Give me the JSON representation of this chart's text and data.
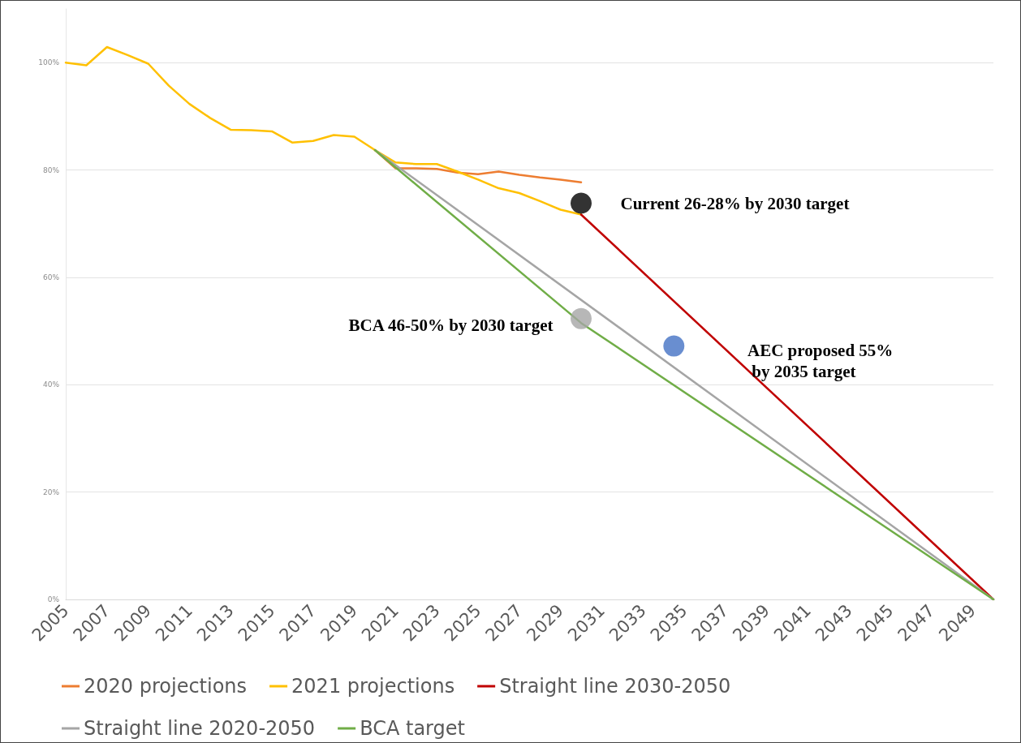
{
  "chart_data": {
    "type": "line",
    "xlim": [
      2005,
      2050
    ],
    "xticks": [
      2005,
      2007,
      2009,
      2011,
      2013,
      2015,
      2017,
      2019,
      2021,
      2023,
      2025,
      2027,
      2029,
      2031,
      2033,
      2035,
      2037,
      2039,
      2041,
      2043,
      2045,
      2047,
      2049
    ],
    "ylim": [
      0,
      110
    ],
    "yticks": [
      {
        "value": 0,
        "label": "0%"
      },
      {
        "value": 20,
        "label": "20%"
      },
      {
        "value": 40,
        "label": "40%"
      },
      {
        "value": 60,
        "label": "60%"
      },
      {
        "value": 80,
        "label": "80%"
      },
      {
        "value": 100,
        "label": "100%"
      }
    ],
    "grid": "y",
    "legend": "bottom",
    "marker": "none",
    "series": [
      {
        "name": "2020 projections",
        "color": "#ed7d31",
        "x": [
          2020,
          2021,
          2022,
          2023,
          2024,
          2025,
          2026,
          2027,
          2028,
          2029,
          2030
        ],
        "values": [
          83.7,
          80.3,
          80.3,
          80.2,
          79.5,
          79.2,
          79.7,
          79.1,
          78.6,
          78.2,
          77.7
        ]
      },
      {
        "name": "2021 projections",
        "color": "#ffc000",
        "x": [
          2005,
          2006,
          2007,
          2008,
          2009,
          2010,
          2011,
          2012,
          2013,
          2014,
          2015,
          2016,
          2017,
          2018,
          2019,
          2020,
          2021,
          2022,
          2023,
          2024,
          2025,
          2026,
          2027,
          2028,
          2029,
          2030
        ],
        "values": [
          100,
          99.5,
          102.9,
          101.4,
          99.8,
          95.7,
          92.3,
          89.7,
          87.5,
          87.4,
          87.2,
          85.1,
          85.4,
          86.5,
          86.2,
          83.7,
          81.4,
          81.1,
          81.1,
          79.7,
          78.2,
          76.6,
          75.7,
          74.2,
          72.6,
          71.7
        ]
      },
      {
        "name": "Straight line 2030-2050",
        "color": "#c00000",
        "x": [
          2030,
          2050
        ],
        "values": [
          71.7,
          0
        ]
      },
      {
        "name": "Straight line 2020-2050",
        "color": "#a5a5a5",
        "x": [
          2020,
          2050
        ],
        "values": [
          83.7,
          0
        ]
      },
      {
        "name": "BCA target",
        "color": "#70ad47",
        "x": [
          2020,
          2030,
          2050
        ],
        "values": [
          83.7,
          51.5,
          0
        ]
      },
      {
        "type": "scatter",
        "marker": "circle",
        "color": "#000000",
        "x": [
          2030
        ],
        "values": [
          73.8
        ]
      },
      {
        "type": "scatter",
        "marker": "circle",
        "color": "#a5a5a5",
        "x": [
          2030
        ],
        "values": [
          52.3
        ]
      },
      {
        "type": "scatter",
        "marker": "circle",
        "color": "#4472c4",
        "x": [
          2034.5
        ],
        "values": [
          47.2
        ]
      }
    ],
    "annotations": [
      {
        "text": "Current 26-28% by 2030 target",
        "x": 2030,
        "y": 73.8
      },
      {
        "text": "BCA 46-50% by 2030 target",
        "x": 2030,
        "y": 52.3
      },
      "AEC proposed 55%\n by 2035 target"
    ]
  }
}
